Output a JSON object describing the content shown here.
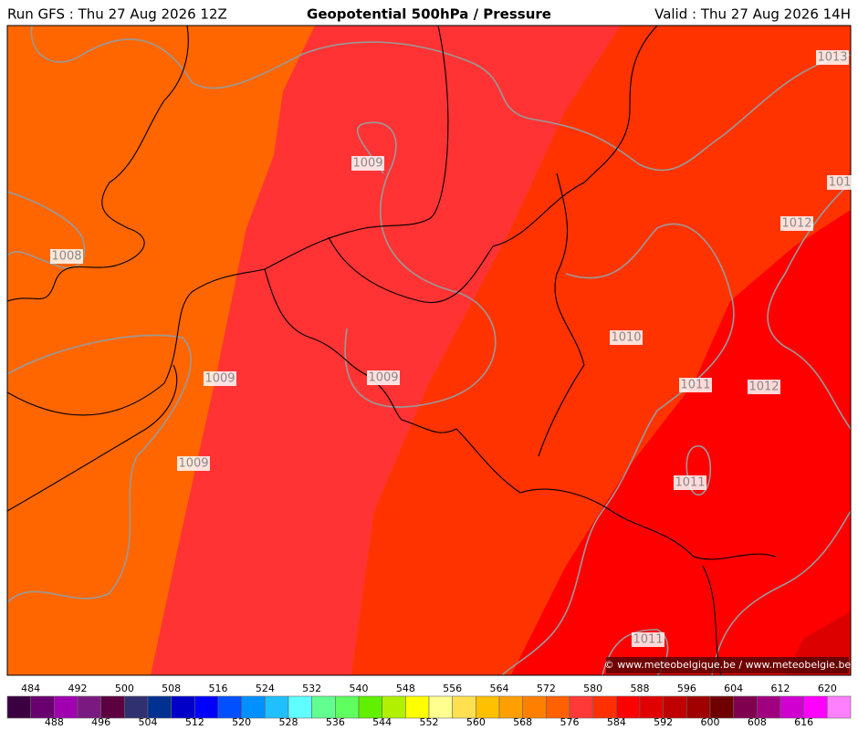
{
  "header": {
    "run": "Run GFS : Thu 27 Aug 2026 12Z",
    "title": "Geopotential 500hPa / Pressure",
    "valid": "Valid : Thu 27 Aug 2026 14H"
  },
  "isobar_labels": [
    "1013",
    "101",
    "1012",
    "1009",
    "1008",
    "1010",
    "1009",
    "1009",
    "1011",
    "1012",
    "1009",
    "1011",
    "1011"
  ],
  "copyright": "© www.meteobelgique.be / www.meteobelgie.be",
  "colorbar": {
    "ticks": [
      484,
      488,
      492,
      496,
      500,
      504,
      508,
      512,
      516,
      520,
      524,
      528,
      532,
      536,
      540,
      544,
      548,
      552,
      556,
      560,
      564,
      568,
      572,
      576,
      580,
      584,
      588,
      592,
      596,
      600,
      604,
      608,
      612,
      616,
      620
    ],
    "colors": [
      "#3a0040",
      "#6a0070",
      "#a000b0",
      "#7a1a80",
      "#5c0040",
      "#303070",
      "#003090",
      "#0000c8",
      "#0000ff",
      "#0050ff",
      "#0090ff",
      "#20c0ff",
      "#60ffff",
      "#60ff90",
      "#60ff60",
      "#60f000",
      "#b0f000",
      "#ffff00",
      "#ffff90",
      "#ffe050",
      "#ffc000",
      "#ffa000",
      "#ff8000",
      "#ff6000",
      "#ff3838",
      "#ff3000",
      "#ff0000",
      "#e00000",
      "#c00000",
      "#a00000",
      "#700000",
      "#800050",
      "#a00080",
      "#d000d0",
      "#ff00ff",
      "#ff80ff"
    ]
  }
}
